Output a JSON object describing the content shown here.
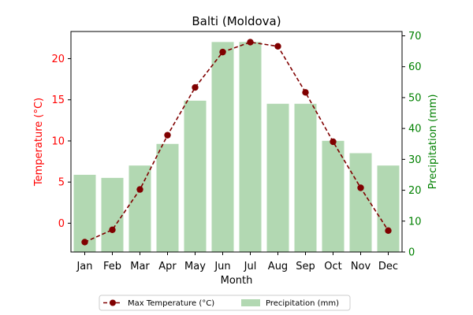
{
  "chart_data": {
    "type": "bar+line",
    "title": "Balti (Moldova)",
    "xlabel": "Month",
    "categories": [
      "Jan",
      "Feb",
      "Mar",
      "Apr",
      "May",
      "Jun",
      "Jul",
      "Aug",
      "Sep",
      "Oct",
      "Nov",
      "Dec"
    ],
    "y_left": {
      "label": "Temperature (°C)",
      "color": "#ff0000",
      "ylim": [
        -3.5,
        23.3
      ],
      "ticks": [
        0,
        5,
        10,
        15,
        20
      ]
    },
    "y_right": {
      "label": "Precipitation (mm)",
      "color": "#008000",
      "ylim": [
        0,
        71.4
      ],
      "ticks": [
        0,
        10,
        20,
        30,
        40,
        50,
        60,
        70
      ]
    },
    "series": [
      {
        "name": "Max Temperature (°C)",
        "kind": "line",
        "axis": "left",
        "color": "#800000",
        "style": "dashed",
        "marker": "circle",
        "values": [
          -2.3,
          -0.8,
          4.1,
          10.7,
          16.5,
          20.8,
          22.0,
          21.5,
          15.9,
          9.9,
          4.3,
          -0.9
        ]
      },
      {
        "name": "Precipitation (mm)",
        "kind": "bar",
        "axis": "right",
        "color": "#b2d8b2",
        "values": [
          25,
          24,
          28,
          35,
          49,
          68,
          68,
          48,
          48,
          36,
          32,
          28
        ]
      }
    ],
    "legend": {
      "placement": "bottom-center",
      "entries": [
        "Max Temperature (°C)",
        "Precipitation (mm)"
      ]
    },
    "grid": false
  }
}
